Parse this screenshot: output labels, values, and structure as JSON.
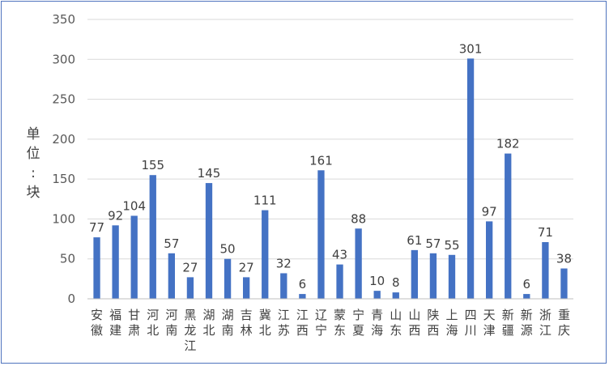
{
  "chart_data": {
    "type": "bar",
    "categories": [
      "安徽",
      "福建",
      "甘肃",
      "河北",
      "河南",
      "黑龙江",
      "湖北",
      "湖南",
      "吉林",
      "冀北",
      "江苏",
      "江西",
      "辽宁",
      "蒙东",
      "宁夏",
      "青海",
      "山东",
      "山西",
      "陕西",
      "上海",
      "四川",
      "天津",
      "新疆",
      "新源",
      "浙江",
      "重庆"
    ],
    "values": [
      77,
      92,
      104,
      155,
      57,
      27,
      145,
      50,
      27,
      111,
      32,
      6,
      161,
      43,
      88,
      10,
      8,
      61,
      57,
      55,
      301,
      97,
      182,
      6,
      71,
      38
    ],
    "title": "",
    "xlabel": "",
    "ylabel": "单位：块",
    "ylim": [
      0,
      350
    ],
    "yticks": [
      0,
      50,
      100,
      150,
      200,
      250,
      300,
      350
    ],
    "grid": true,
    "legend": "none",
    "colors": {
      "bar": "#4472c4",
      "grid": "#d9d9d9",
      "border": "#4f73be"
    }
  }
}
